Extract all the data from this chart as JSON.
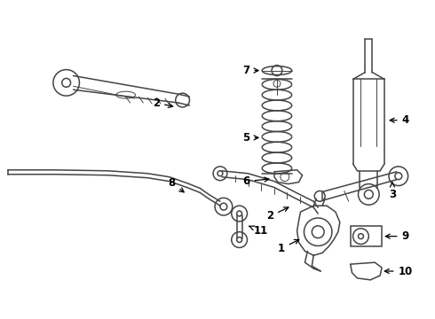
{
  "background_color": "#ffffff",
  "line_color": "#444444",
  "label_color": "#000000",
  "figsize": [
    4.9,
    3.6
  ],
  "dpi": 100
}
